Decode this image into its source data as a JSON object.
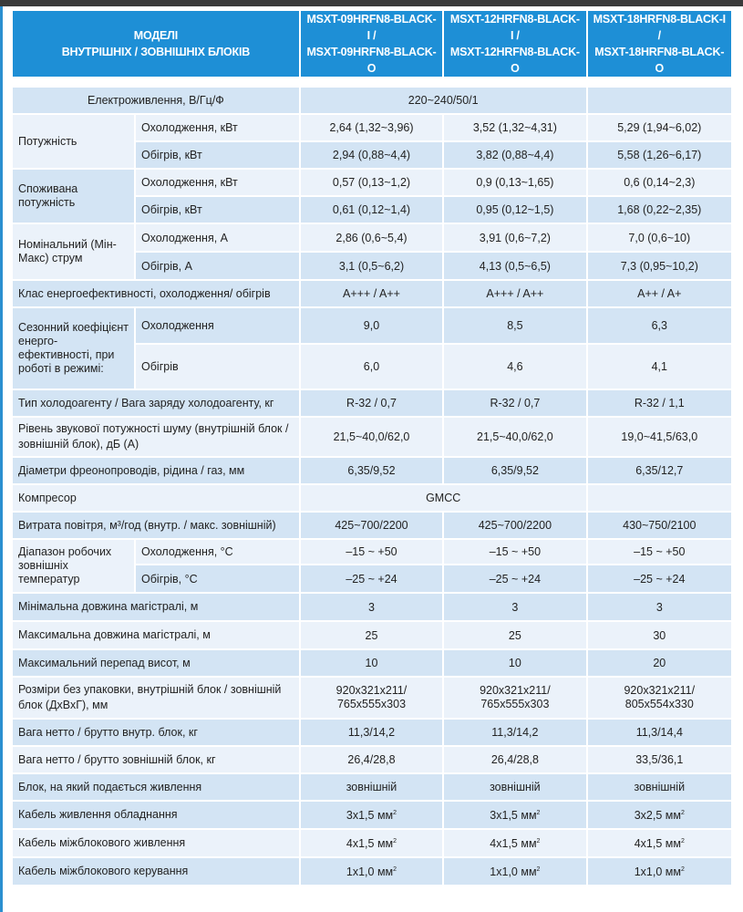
{
  "header": {
    "models_label_1": "МОДЕЛІ",
    "models_label_2": "ВНУТРІШНІХ / ЗОВНІШНІХ БЛОКІВ",
    "models": [
      [
        "MSXT-09HRFN8-BLACK-I /",
        "MSXT-09HRFN8-BLACK-O"
      ],
      [
        "MSXT-12HRFN8-BLACK-I /",
        "MSXT-12HRFN8-BLACK-O"
      ],
      [
        "MSXT-18HRFN8-BLACK-I /",
        "MSXT-18HRFN8-BLACK-O"
      ]
    ]
  },
  "power_supply": {
    "label": "Електроживлення, В/Гц/Ф",
    "value": "220~240/50/1"
  },
  "capacity": {
    "label": "Потужність",
    "cool": "Охолодження, кВт",
    "heat": "Обігрів, кВт",
    "cool_v": [
      "2,64 (1,32~3,96)",
      "3,52 (1,32~4,31)",
      "5,29 (1,94~6,02)"
    ],
    "heat_v": [
      "2,94 (0,88~4,4)",
      "3,82 (0,88~4,4)",
      "5,58 (1,26~6,17)"
    ]
  },
  "consumption": {
    "label": "Споживана потужність",
    "cool": "Охолодження, кВт",
    "heat": "Обігрів, кВт",
    "cool_v": [
      "0,57 (0,13~1,2)",
      "0,9 (0,13~1,65)",
      "0,6 (0,14~2,3)"
    ],
    "heat_v": [
      "0,61 (0,12~1,4)",
      "0,95 (0,12~1,5)",
      "1,68 (0,22~2,35)"
    ]
  },
  "current": {
    "label": "Номінальний (Мін-Макс) струм",
    "cool": "Охолодження, А",
    "heat": "Обігрів, А",
    "cool_v": [
      "2,86 (0,6~5,4)",
      "3,91 (0,6~7,2)",
      "7,0 (0,6~10)"
    ],
    "heat_v": [
      "3,1 (0,5~6,2)",
      "4,13 (0,5~6,5)",
      "7,3 (0,95~10,2)"
    ]
  },
  "energy_class": {
    "label": "Клас енергоефективності, охолодження/ обігрів",
    "v": [
      "A+++ / A++",
      "A+++ / A++",
      "A++ / A+"
    ]
  },
  "seasonal": {
    "label": "Сезонний коефіцієнт енерго-ефективності, при роботі в режимі:",
    "cool": "Охолодження",
    "heat": "Обігрів",
    "cool_v": [
      "9,0",
      "8,5",
      "6,3"
    ],
    "heat_v": [
      "6,0",
      "4,6",
      "4,1"
    ]
  },
  "refrigerant": {
    "label": "Тип холодоагенту / Вага заряду холодоагенту, кг",
    "v": [
      "R-32 / 0,7",
      "R-32 / 0,7",
      "R-32  / 1,1"
    ]
  },
  "noise": {
    "label": "Рівень звукової потужності шуму (внутрішній блок / зовнішній блок), дБ (А)",
    "v": [
      "21,5~40,0/62,0",
      "21,5~40,0/62,0",
      "19,0~41,5/63,0"
    ]
  },
  "pipes": {
    "label": "Діаметри фреонопроводів, рідина / газ, мм",
    "v": [
      "6,35/9,52",
      "6,35/9,52",
      "6,35/12,7"
    ]
  },
  "compressor": {
    "label": "Компресор",
    "value": "GMCC"
  },
  "airflow": {
    "label": "Витрата повітря, м³/год (внутр. / макс. зовнішній)",
    "v": [
      "425~700/2200",
      "425~700/2200",
      "430~750/2100"
    ]
  },
  "temp_range": {
    "label": "Діапазон робочих зовнішніх температур",
    "cool": "Охолодження, °С",
    "heat": "Обігрів, °С",
    "cool_v": [
      "–15 ~ +50",
      "–15 ~ +50",
      "–15 ~ +50"
    ],
    "heat_v": [
      "–25 ~ +24",
      "–25 ~ +24",
      "–25 ~ +24"
    ]
  },
  "min_len": {
    "label": "Мінімальна довжина магістралі, м",
    "v": [
      "3",
      "3",
      "3"
    ]
  },
  "max_len": {
    "label": "Максимальна довжина магістралі, м",
    "v": [
      "25",
      "25",
      "30"
    ]
  },
  "max_height": {
    "label": "Максимальний перепад висот, м",
    "v": [
      "10",
      "10",
      "20"
    ]
  },
  "dims": {
    "label": "Розміри без упаковки, внутрішній блок / зовнішній блок (ДхВхГ), мм",
    "v1": [
      "920x321x211/",
      "920x321x211/",
      "920x321x211/"
    ],
    "v2": [
      "765x555x303",
      "765x555x303",
      "805x554x330"
    ]
  },
  "weight_in": {
    "label": "Вага нетто / брутто внутр. блок, кг",
    "v": [
      "11,3/14,2",
      "11,3/14,2",
      "11,3/14,4"
    ]
  },
  "weight_out": {
    "label": "Вага нетто / брутто зовнішній блок, кг",
    "v": [
      "26,4/28,8",
      "26,4/28,8",
      "33,5/36,1"
    ]
  },
  "power_unit": {
    "label": "Блок, на який подається живлення",
    "v": [
      "зовнішній",
      "зовнішній",
      "зовнішній"
    ]
  },
  "cable_power": {
    "label": "Кабель живлення обладнання",
    "v": [
      "3x1,5 мм",
      "3x1,5 мм",
      "3x2,5 мм"
    ]
  },
  "cable_inter_power": {
    "label": "Кабель міжблокового живлення",
    "v": [
      "4x1,5 мм",
      "4x1,5 мм",
      "4x1,5 мм"
    ]
  },
  "cable_inter_control": {
    "label": "Кабель міжблокового керування",
    "v": [
      "1x1,0 мм",
      "1x1,0 мм",
      "1x1,0 мм"
    ]
  },
  "sq": "2"
}
